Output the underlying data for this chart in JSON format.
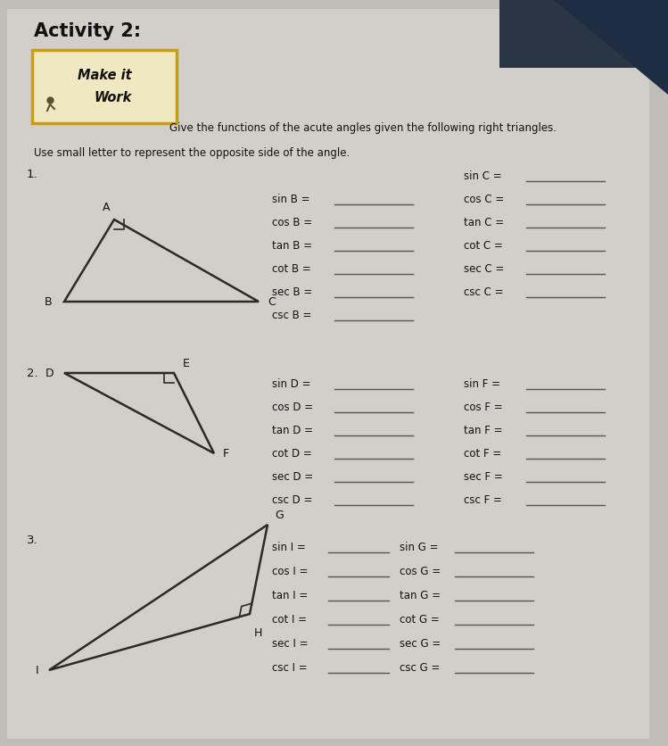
{
  "title": "Activity 2:",
  "bg_color": "#b8b5b0",
  "paper_color": "#d8d4ce",
  "box_color": "#f0ead8",
  "box_border": "#c8a800",
  "text_color": "#1a1a1a",
  "line_color": "#444444",
  "triangle_color": "#2a2a2a",
  "instruction1": "Give the functions of the acute angles given the following right triangles.",
  "instruction2": "Use small letter to represent the opposite side of the angle.",
  "section1_left": [
    "sin B =",
    "cos B =",
    "tan B =",
    "cot B =",
    "sec B =",
    "csc B ="
  ],
  "section1_right": [
    "sin C =",
    "cos C =",
    "tan C =",
    "cot C =",
    "sec C =",
    "csc C ="
  ],
  "section2_left": [
    "sin D =",
    "cos D =",
    "tan D =",
    "cot D =",
    "sec D =",
    "csc D ="
  ],
  "section2_right": [
    "sin F =",
    "cos F =",
    "tan F =",
    "cot F =",
    "sec F =",
    "csc F ="
  ],
  "section3_left": [
    "sin I =",
    "cos I =",
    "tan I =",
    "cot I =",
    "sec I =",
    "csc I ="
  ],
  "section3_right": [
    "sin G =",
    "cos G =",
    "tan G =",
    "cot G =",
    "sec G =",
    "csc G ="
  ]
}
